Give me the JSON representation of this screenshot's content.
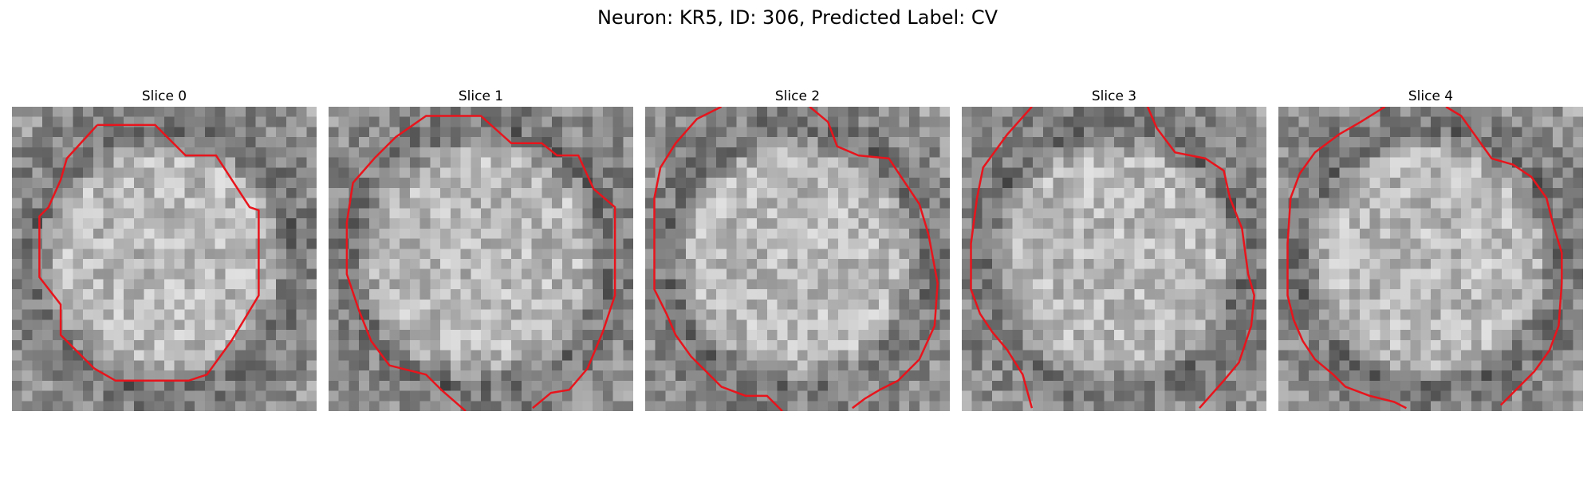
{
  "figure": {
    "title": "Neuron: KR5, ID: 306, Predicted Label: CV",
    "contour_color": "#e8141c",
    "slices": [
      {
        "label": "Slice 0",
        "seed": 11,
        "contours": [
          [
            [
              0.28,
              0.06
            ],
            [
              0.47,
              0.06
            ],
            [
              0.57,
              0.16
            ],
            [
              0.67,
              0.16
            ],
            [
              0.78,
              0.33
            ],
            [
              0.81,
              0.34
            ],
            [
              0.81,
              0.62
            ],
            [
              0.78,
              0.67
            ],
            [
              0.72,
              0.77
            ],
            [
              0.64,
              0.88
            ],
            [
              0.58,
              0.9
            ],
            [
              0.48,
              0.9
            ],
            [
              0.34,
              0.9
            ],
            [
              0.27,
              0.86
            ],
            [
              0.16,
              0.75
            ],
            [
              0.16,
              0.65
            ],
            [
              0.09,
              0.56
            ],
            [
              0.09,
              0.36
            ],
            [
              0.12,
              0.33
            ],
            [
              0.16,
              0.24
            ],
            [
              0.18,
              0.17
            ],
            [
              0.28,
              0.06
            ]
          ]
        ]
      },
      {
        "label": "Slice 1",
        "seed": 23,
        "contours": [
          [
            [
              0.45,
              1.0
            ],
            [
              0.37,
              0.93
            ],
            [
              0.32,
              0.88
            ],
            [
              0.2,
              0.85
            ],
            [
              0.14,
              0.77
            ],
            [
              0.1,
              0.67
            ],
            [
              0.06,
              0.55
            ],
            [
              0.06,
              0.38
            ],
            [
              0.08,
              0.25
            ],
            [
              0.15,
              0.17
            ],
            [
              0.22,
              0.1
            ],
            [
              0.32,
              0.03
            ],
            [
              0.5,
              0.03
            ],
            [
              0.6,
              0.12
            ],
            [
              0.7,
              0.12
            ],
            [
              0.75,
              0.16
            ],
            [
              0.82,
              0.16
            ],
            [
              0.87,
              0.27
            ],
            [
              0.94,
              0.33
            ],
            [
              0.94,
              0.62
            ],
            [
              0.9,
              0.74
            ],
            [
              0.85,
              0.86
            ],
            [
              0.79,
              0.93
            ],
            [
              0.73,
              0.94
            ],
            [
              0.67,
              0.99
            ]
          ]
        ]
      },
      {
        "label": "Slice 2",
        "seed": 37,
        "contours": [
          [
            [
              0.25,
              0.0
            ],
            [
              0.17,
              0.04
            ],
            [
              0.1,
              0.12
            ],
            [
              0.05,
              0.2
            ],
            [
              0.03,
              0.3
            ],
            [
              0.03,
              0.6
            ],
            [
              0.07,
              0.68
            ],
            [
              0.1,
              0.75
            ],
            [
              0.15,
              0.82
            ],
            [
              0.2,
              0.87
            ],
            [
              0.25,
              0.92
            ],
            [
              0.33,
              0.95
            ],
            [
              0.4,
              0.95
            ],
            [
              0.45,
              1.0
            ]
          ],
          [
            [
              0.54,
              0.0
            ],
            [
              0.6,
              0.05
            ],
            [
              0.63,
              0.13
            ],
            [
              0.7,
              0.16
            ],
            [
              0.8,
              0.17
            ],
            [
              0.86,
              0.26
            ],
            [
              0.9,
              0.32
            ],
            [
              0.93,
              0.42
            ],
            [
              0.96,
              0.58
            ],
            [
              0.95,
              0.72
            ],
            [
              0.9,
              0.83
            ],
            [
              0.83,
              0.9
            ],
            [
              0.77,
              0.93
            ],
            [
              0.72,
              0.96
            ],
            [
              0.68,
              0.99
            ]
          ]
        ]
      },
      {
        "label": "Slice 3",
        "seed": 53,
        "contours": [
          [
            [
              0.23,
              0.0
            ],
            [
              0.15,
              0.09
            ],
            [
              0.07,
              0.2
            ],
            [
              0.05,
              0.3
            ],
            [
              0.03,
              0.45
            ],
            [
              0.03,
              0.6
            ],
            [
              0.06,
              0.68
            ],
            [
              0.1,
              0.74
            ],
            [
              0.15,
              0.8
            ],
            [
              0.2,
              0.88
            ],
            [
              0.23,
              0.99
            ]
          ],
          [
            [
              0.61,
              0.0
            ],
            [
              0.64,
              0.07
            ],
            [
              0.7,
              0.15
            ],
            [
              0.8,
              0.17
            ],
            [
              0.86,
              0.21
            ],
            [
              0.88,
              0.3
            ],
            [
              0.92,
              0.4
            ],
            [
              0.94,
              0.55
            ],
            [
              0.96,
              0.62
            ],
            [
              0.95,
              0.72
            ],
            [
              0.91,
              0.84
            ],
            [
              0.86,
              0.9
            ],
            [
              0.78,
              0.99
            ]
          ]
        ]
      },
      {
        "label": "Slice 4",
        "seed": 71,
        "contours": [
          [
            [
              0.35,
              0.0
            ],
            [
              0.27,
              0.05
            ],
            [
              0.2,
              0.09
            ],
            [
              0.12,
              0.15
            ],
            [
              0.07,
              0.22
            ],
            [
              0.04,
              0.3
            ],
            [
              0.03,
              0.45
            ],
            [
              0.03,
              0.62
            ],
            [
              0.05,
              0.7
            ],
            [
              0.08,
              0.77
            ],
            [
              0.12,
              0.83
            ],
            [
              0.18,
              0.88
            ],
            [
              0.22,
              0.92
            ],
            [
              0.3,
              0.95
            ],
            [
              0.38,
              0.97
            ],
            [
              0.42,
              0.99
            ]
          ],
          [
            [
              0.55,
              0.0
            ],
            [
              0.6,
              0.03
            ],
            [
              0.65,
              0.1
            ],
            [
              0.7,
              0.17
            ],
            [
              0.77,
              0.19
            ],
            [
              0.83,
              0.23
            ],
            [
              0.88,
              0.3
            ],
            [
              0.9,
              0.38
            ],
            [
              0.93,
              0.48
            ],
            [
              0.93,
              0.58
            ],
            [
              0.92,
              0.72
            ],
            [
              0.89,
              0.8
            ],
            [
              0.84,
              0.87
            ],
            [
              0.78,
              0.93
            ],
            [
              0.73,
              0.98
            ]
          ]
        ]
      }
    ]
  }
}
